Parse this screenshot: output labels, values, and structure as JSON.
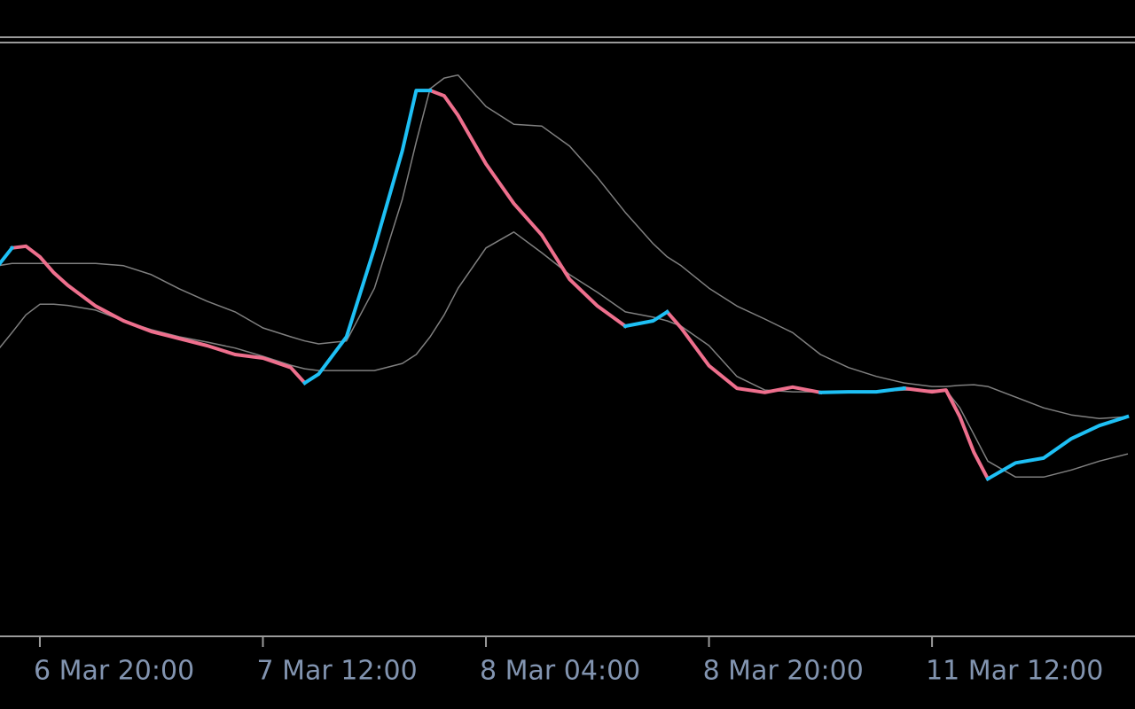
{
  "chart_data": {
    "type": "line",
    "x": [
      -3,
      -2,
      -1,
      0,
      1,
      2,
      4,
      6,
      8,
      10,
      12,
      14,
      16,
      18,
      19,
      20,
      22,
      24,
      26,
      27,
      28,
      29,
      30,
      32,
      34,
      36,
      38,
      40,
      42,
      44,
      45,
      46,
      48,
      50,
      52,
      54,
      56,
      58,
      60,
      62,
      64,
      65,
      66,
      67,
      68,
      70,
      72,
      74,
      76,
      78
    ],
    "xlim": [
      -2.86,
      78.56
    ],
    "xticks": [
      {
        "value": 0,
        "label": "6 Mar 20:00"
      },
      {
        "value": 16,
        "label": "7 Mar 12:00"
      },
      {
        "value": 32,
        "label": "8 Mar 04:00"
      },
      {
        "value": 48,
        "label": "8 Mar 20:00"
      },
      {
        "value": 64,
        "label": "11 Mar 12:00"
      }
    ],
    "ylim": [
      0,
      100
    ],
    "series": [
      {
        "color": "#808080",
        "width": 1.5,
        "values": [
          62.6,
          63.0,
          63.0,
          63.0,
          63.0,
          63.0,
          63.0,
          62.6,
          61.1,
          58.7,
          56.6,
          54.8,
          52.1,
          50.6,
          49.9,
          49.4,
          49.9,
          58.8,
          73.8,
          83.5,
          92.5,
          94.3,
          94.8,
          89.5,
          86.5,
          86.2,
          82.8,
          77.5,
          71.6,
          66.3,
          64.1,
          62.6,
          58.8,
          55.8,
          53.6,
          51.3,
          47.6,
          45.4,
          43.9,
          42.8,
          42.2,
          42.2,
          42.4,
          42.5,
          42.2,
          40.4,
          38.6,
          37.4,
          36.8,
          37.1
        ]
      },
      {
        "color": "#808080",
        "width": 1.5,
        "values": [
          48.4,
          51.3,
          54.3,
          56.1,
          56.1,
          55.9,
          55.1,
          53.3,
          51.8,
          50.6,
          49.7,
          48.7,
          47.3,
          45.8,
          45.2,
          44.9,
          44.9,
          44.9,
          46.1,
          47.6,
          50.6,
          54.3,
          58.8,
          65.6,
          68.3,
          64.8,
          61.1,
          58.1,
          54.8,
          53.9,
          53.3,
          52.4,
          49.1,
          43.9,
          41.6,
          41.3,
          41.3,
          41.3,
          41.3,
          41.6,
          41.6,
          41.6,
          38.6,
          34.1,
          29.6,
          26.9,
          26.9,
          28.1,
          29.6,
          30.8
        ]
      },
      {
        "color": "#ee6f8d",
        "width": 4,
        "values": [
          null,
          65.6,
          65.9,
          64.1,
          61.4,
          59.3,
          55.8,
          53.3,
          51.5,
          50.3,
          49.1,
          47.6,
          47.0,
          45.4,
          42.8,
          null,
          null,
          null,
          null,
          null,
          92.2,
          91.3,
          88.0,
          79.8,
          73.1,
          67.8,
          60.3,
          55.8,
          52.4,
          null,
          54.8,
          52.1,
          45.7,
          41.9,
          41.2,
          42.1,
          41.2,
          null,
          null,
          41.9,
          41.3,
          41.6,
          37.1,
          31.1,
          26.6,
          null,
          null,
          null,
          null,
          null
        ]
      },
      {
        "color": "#1ec0f5",
        "width": 4,
        "values": [
          62.6,
          65.6,
          null,
          null,
          null,
          null,
          null,
          null,
          null,
          null,
          null,
          null,
          null,
          null,
          42.8,
          44.3,
          50.6,
          65.6,
          82.0,
          92.2,
          92.2,
          null,
          null,
          null,
          null,
          null,
          null,
          null,
          52.4,
          53.3,
          54.8,
          null,
          null,
          null,
          null,
          null,
          41.2,
          41.3,
          41.3,
          41.9,
          null,
          null,
          null,
          null,
          26.6,
          29.3,
          30.1,
          33.4,
          35.6,
          37.1
        ]
      }
    ]
  }
}
